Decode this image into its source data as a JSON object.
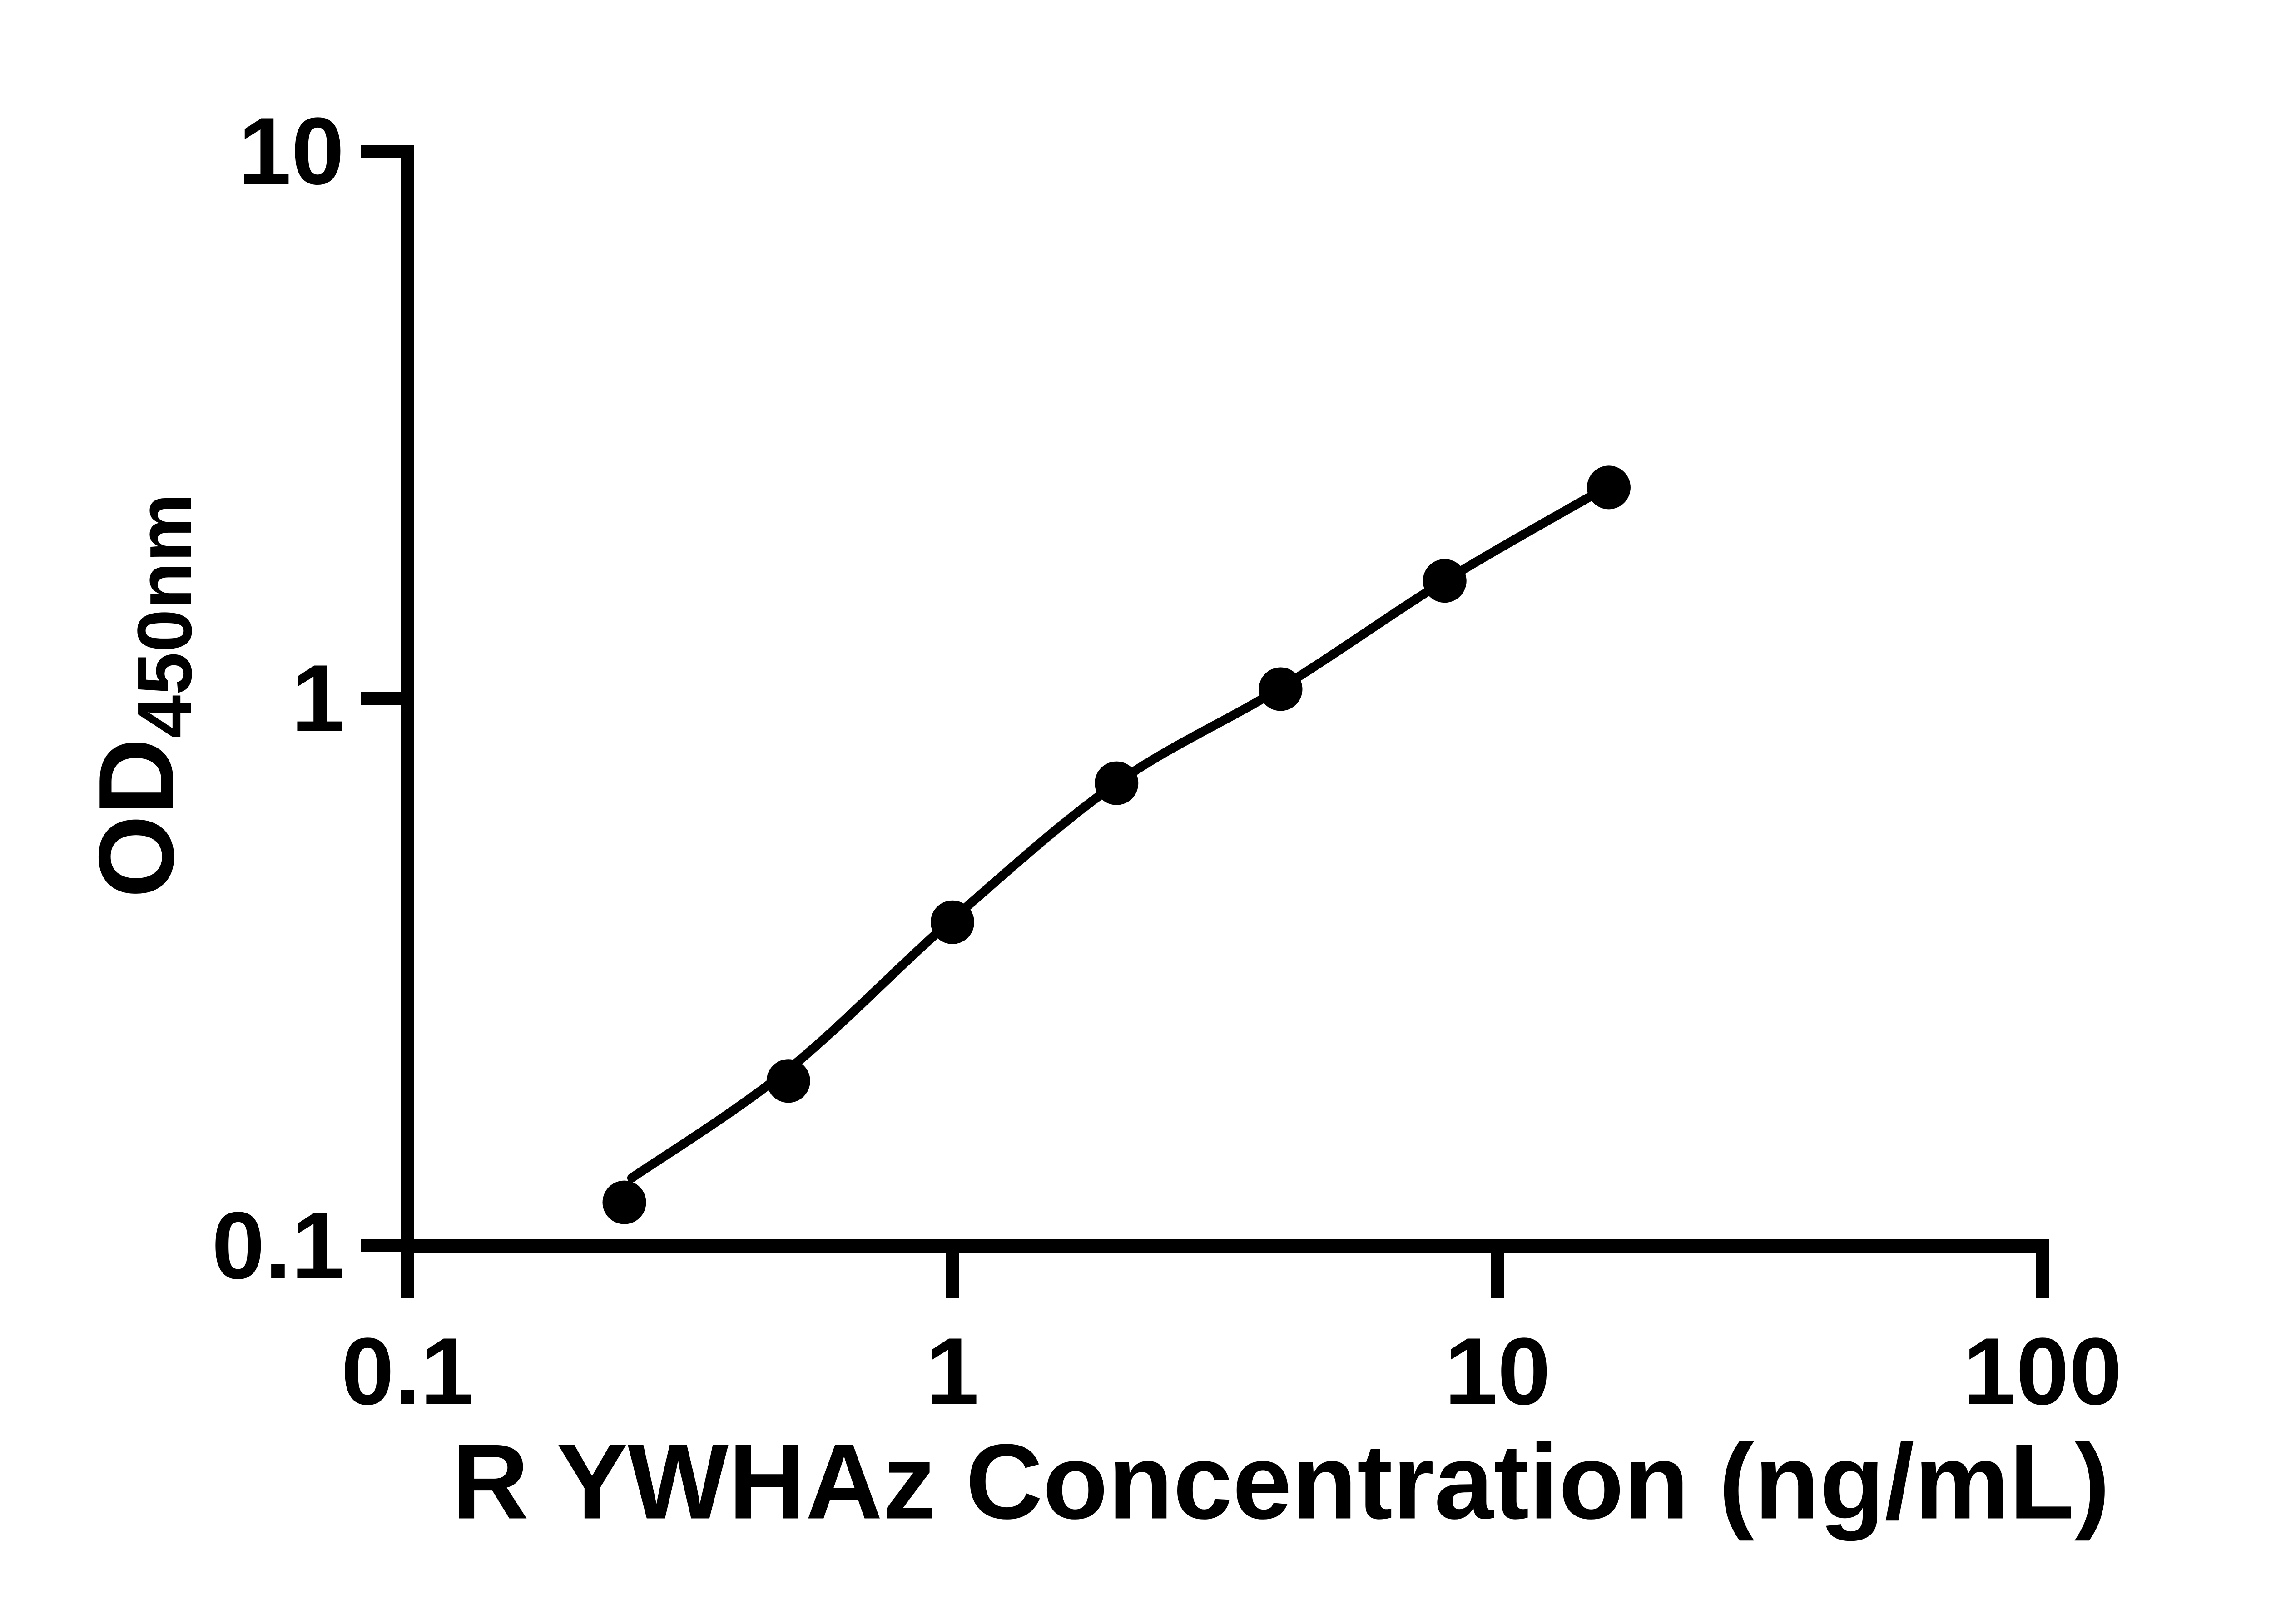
{
  "chart_data": {
    "type": "scatter",
    "title": "",
    "xlabel": "R YWHAz Concentration (ng/mL)",
    "ylabel_main": "OD",
    "ylabel_sub": "450nm",
    "x_scale": "log",
    "y_scale": "log",
    "xlim": [
      0.1,
      100
    ],
    "ylim": [
      0.1,
      10
    ],
    "x_tick_labels": [
      "0.1",
      "1",
      "10",
      "100"
    ],
    "x_tick_values": [
      0.1,
      1,
      10,
      100
    ],
    "y_tick_labels": [
      "0.1",
      "1",
      "10"
    ],
    "y_tick_values": [
      0.1,
      1,
      10
    ],
    "grid": false,
    "legend": "none",
    "background_color": "#ffffff",
    "axis_color": "#000000",
    "marker_color": "#000000",
    "line_color": "#000000",
    "points": [
      {
        "x": 0.25,
        "y": 0.12
      },
      {
        "x": 0.5,
        "y": 0.2
      },
      {
        "x": 1,
        "y": 0.39
      },
      {
        "x": 2,
        "y": 0.7
      },
      {
        "x": 4,
        "y": 1.04
      },
      {
        "x": 8,
        "y": 1.64
      },
      {
        "x": 16,
        "y": 2.43
      }
    ],
    "fit_curve": [
      {
        "x": 0.258,
        "y": 0.133
      },
      {
        "x": 0.5,
        "y": 0.21
      },
      {
        "x": 1,
        "y": 0.395
      },
      {
        "x": 2,
        "y": 0.7
      },
      {
        "x": 4,
        "y": 1.045
      },
      {
        "x": 8,
        "y": 1.64
      },
      {
        "x": 15.6,
        "y": 2.41
      }
    ]
  }
}
